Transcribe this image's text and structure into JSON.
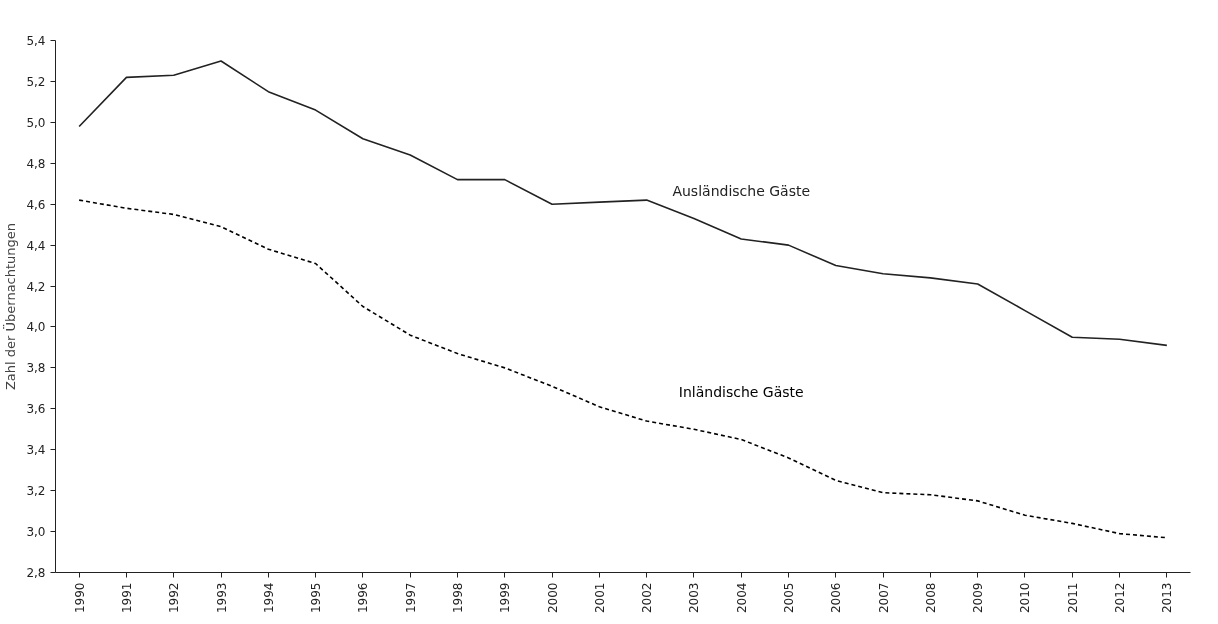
{
  "chart_data": {
    "type": "line",
    "ylabel": "Zahl der Übernachtungen",
    "categories": [
      "1990",
      "1991",
      "1992",
      "1993",
      "1994",
      "1995",
      "1996",
      "1997",
      "1998",
      "1999",
      "2000",
      "2001",
      "2002",
      "2003",
      "2004",
      "2005",
      "2006",
      "2007",
      "2008",
      "2009",
      "2010",
      "2011",
      "2012",
      "2013"
    ],
    "series": [
      {
        "name": "Ausländische Gäste",
        "color": "#222222",
        "line_style": "solid",
        "values": [
          4.98,
          5.22,
          5.23,
          5.3,
          5.15,
          5.06,
          4.92,
          4.84,
          4.72,
          4.72,
          4.6,
          4.61,
          4.62,
          4.53,
          4.43,
          4.4,
          4.3,
          4.26,
          4.24,
          4.21,
          4.08,
          3.95,
          3.94,
          3.91
        ]
      },
      {
        "name": "Inländische Gäste",
        "color": "#000000",
        "line_style": "dashed",
        "values": [
          4.62,
          4.58,
          4.55,
          4.49,
          4.38,
          4.31,
          4.1,
          3.96,
          3.87,
          3.8,
          3.71,
          3.61,
          3.54,
          3.5,
          3.45,
          3.36,
          3.25,
          3.19,
          3.18,
          3.15,
          3.08,
          3.04,
          2.99,
          2.97
        ]
      }
    ],
    "ylim": [
      2.8,
      5.4
    ],
    "yticks": [
      {
        "value": 2.8,
        "label": "2,8"
      },
      {
        "value": 3.0,
        "label": "3,0"
      },
      {
        "value": 3.2,
        "label": "3,2"
      },
      {
        "value": 3.4,
        "label": "3,4"
      },
      {
        "value": 3.6,
        "label": "3,6"
      },
      {
        "value": 3.8,
        "label": "3,8"
      },
      {
        "value": 4.0,
        "label": "4,0"
      },
      {
        "value": 4.2,
        "label": "4,2"
      },
      {
        "value": 4.4,
        "label": "4,4"
      },
      {
        "value": 4.6,
        "label": "4,6"
      },
      {
        "value": 4.8,
        "label": "4,8"
      },
      {
        "value": 5.0,
        "label": "5,0"
      },
      {
        "value": 5.2,
        "label": "5,2"
      },
      {
        "value": 5.4,
        "label": "5,4"
      }
    ],
    "grid": false,
    "marker": "none"
  }
}
